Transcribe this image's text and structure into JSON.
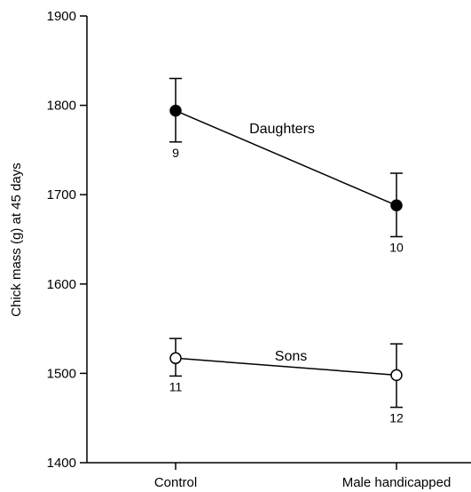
{
  "chart_data": {
    "type": "line",
    "title": "",
    "xlabel": "",
    "ylabel": "Chick mass (g) at 45 days",
    "categories": [
      "Control",
      "Male handicapped"
    ],
    "ylim": [
      1400,
      1900
    ],
    "yticks": [
      1400,
      1500,
      1600,
      1700,
      1800,
      1900
    ],
    "ytick_labels": [
      "1400",
      "1500",
      "1600",
      "1700",
      "1800",
      "1900"
    ],
    "grid": false,
    "series": [
      {
        "name": "Daughters",
        "marker": "filled-circle",
        "values": [
          1794,
          1688
        ],
        "err_low": [
          1759,
          1653
        ],
        "err_high": [
          1830,
          1724
        ],
        "n": [
          "9",
          "10"
        ]
      },
      {
        "name": "Sons",
        "marker": "open-circle",
        "values": [
          1517,
          1498
        ],
        "err_low": [
          1497,
          1462
        ],
        "err_high": [
          1539,
          1533
        ],
        "n": [
          "11",
          "12"
        ]
      }
    ]
  }
}
